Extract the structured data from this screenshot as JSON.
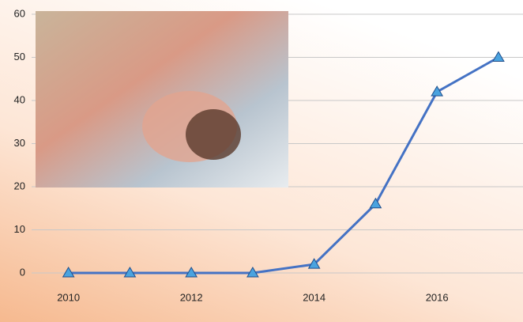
{
  "chart_data": {
    "type": "line",
    "x": [
      2010,
      2011,
      2012,
      2013,
      2014,
      2015,
      2016,
      2017
    ],
    "series": [
      {
        "color": "#4472c4",
        "values": [
          0,
          0,
          0,
          0,
          2,
          16,
          42,
          50
        ]
      }
    ],
    "xlim": [
      2009.4,
      2017.4
    ],
    "xticks": [
      2010,
      2012,
      2014,
      2016
    ],
    "ylim": [
      0,
      60
    ],
    "yticks": [
      0,
      10,
      20,
      30,
      40,
      50,
      60
    ],
    "grid": true
  }
}
